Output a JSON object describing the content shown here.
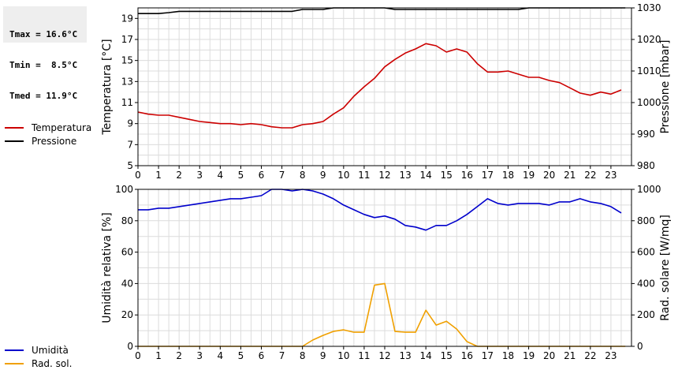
{
  "stats": {
    "lines": [
      "Tmax = 16.6°C",
      "Tmin =  8.5°C",
      "Tmed = 11.9°C"
    ]
  },
  "legend_top": [
    {
      "label": "Temperatura",
      "color": "#cc0000"
    },
    {
      "label": "Pressione",
      "color": "#000000"
    }
  ],
  "legend_bottom": [
    {
      "label": "Umidità",
      "color": "#0000cc"
    },
    {
      "label": "Rad. sol.",
      "color": "#f0a000"
    }
  ],
  "chart_data": [
    {
      "type": "line",
      "xlabel": "",
      "ylabel_left": "Temperatura [°C]",
      "ylabel_right": "Pressione [mbar]",
      "x_ticks": [
        "0",
        "1",
        "2",
        "3",
        "4",
        "5",
        "6",
        "7",
        "8",
        "9",
        "10",
        "11",
        "12",
        "13",
        "14",
        "15",
        "16",
        "17",
        "18",
        "19",
        "20",
        "21",
        "22",
        "23"
      ],
      "y_left_ticks": [
        "5",
        "7",
        "9",
        "11",
        "13",
        "15",
        "17",
        "19"
      ],
      "y_right_ticks": [
        "980",
        "990",
        "1000",
        "1010",
        "1020",
        "1030"
      ],
      "xlim": [
        0,
        24
      ],
      "ylim_left": [
        5,
        20
      ],
      "ylim_right": [
        980,
        1030
      ],
      "grid": true,
      "series": [
        {
          "name": "Temperatura",
          "axis": "left",
          "color": "#cc0000",
          "x": [
            0,
            0.5,
            1,
            1.5,
            2,
            2.5,
            3,
            3.5,
            4,
            4.5,
            5,
            5.5,
            6,
            6.5,
            7,
            7.5,
            8,
            8.5,
            9,
            9.5,
            10,
            10.5,
            11,
            11.5,
            12,
            12.5,
            13,
            13.5,
            14,
            14.5,
            15,
            15.5,
            16,
            16.5,
            17,
            17.5,
            18,
            18.5,
            19,
            19.5,
            20,
            20.5,
            21,
            21.5,
            22,
            22.5,
            23,
            23.5
          ],
          "y": [
            10.1,
            9.9,
            9.8,
            9.8,
            9.6,
            9.4,
            9.2,
            9.1,
            9.0,
            9.0,
            8.9,
            9.0,
            8.9,
            8.7,
            8.6,
            8.6,
            8.9,
            9.0,
            9.2,
            9.9,
            10.5,
            11.6,
            12.5,
            13.3,
            14.4,
            15.1,
            15.7,
            16.1,
            16.6,
            16.4,
            15.8,
            16.1,
            15.8,
            14.7,
            13.9,
            13.9,
            14.0,
            13.7,
            13.4,
            13.4,
            13.1,
            12.9,
            12.4,
            11.9,
            11.7,
            12.0,
            11.8,
            12.2
          ]
        },
        {
          "name": "Pressione",
          "axis": "right",
          "color": "#000000",
          "x": [
            0,
            1,
            1.5,
            2,
            3,
            4,
            5,
            6,
            7,
            7.5,
            8,
            9,
            9.5,
            10,
            11,
            12,
            12.5,
            13,
            14,
            15,
            16,
            17,
            18,
            18.5,
            19,
            20,
            21,
            22,
            23,
            23.7
          ],
          "y": [
            1028.2,
            1028.2,
            1028.5,
            1028.9,
            1028.9,
            1028.9,
            1028.9,
            1028.9,
            1028.9,
            1028.9,
            1029.5,
            1029.5,
            1030,
            1030.3,
            1030.3,
            1030.3,
            1029.5,
            1029.5,
            1029.5,
            1029.5,
            1029.5,
            1029.5,
            1029.5,
            1029.5,
            1030.2,
            1030.5,
            1030.5,
            1030.5,
            1030.5,
            1030.5
          ]
        }
      ]
    },
    {
      "type": "line",
      "xlabel": "",
      "ylabel_left": "Umidità relativa [%]",
      "ylabel_right": "Rad. solare [W/mq]",
      "x_ticks": [
        "0",
        "1",
        "2",
        "3",
        "4",
        "5",
        "6",
        "7",
        "8",
        "9",
        "10",
        "11",
        "12",
        "13",
        "14",
        "15",
        "16",
        "17",
        "18",
        "19",
        "20",
        "21",
        "22",
        "23"
      ],
      "y_left_ticks": [
        "0",
        "20",
        "40",
        "60",
        "80",
        "100"
      ],
      "y_right_ticks": [
        "0",
        "200",
        "400",
        "600",
        "800",
        "1000"
      ],
      "xlim": [
        0,
        24
      ],
      "ylim_left": [
        0,
        100
      ],
      "ylim_right": [
        0,
        1000
      ],
      "grid": true,
      "series": [
        {
          "name": "Umidità",
          "axis": "left",
          "color": "#0000cc",
          "x": [
            0,
            0.5,
            1,
            1.5,
            2,
            2.5,
            3,
            3.5,
            4,
            4.5,
            5,
            5.5,
            6,
            6.5,
            7,
            7.5,
            8,
            8.5,
            9,
            9.5,
            10,
            10.5,
            11,
            11.5,
            12,
            12.5,
            13,
            13.5,
            14,
            14.5,
            15,
            15.5,
            16,
            16.5,
            17,
            17.5,
            18,
            18.5,
            19,
            19.5,
            20,
            20.5,
            21,
            21.5,
            22,
            22.5,
            23,
            23.5
          ],
          "y": [
            87,
            87,
            88,
            88,
            89,
            90,
            91,
            92,
            93,
            94,
            94,
            95,
            96,
            100,
            100,
            99,
            100,
            99,
            97,
            94,
            90,
            87,
            84,
            82,
            83,
            81,
            77,
            76,
            74,
            77,
            77,
            80,
            84,
            89,
            94,
            91,
            90,
            91,
            91,
            91,
            90,
            92,
            92,
            94,
            92,
            91,
            89,
            85
          ]
        },
        {
          "name": "Rad. sol.",
          "axis": "right",
          "color": "#f0a000",
          "x": [
            0,
            1,
            2,
            3,
            4,
            5,
            6,
            7,
            8,
            8.5,
            9,
            9.5,
            10,
            10.5,
            11,
            11.5,
            12,
            12.5,
            13,
            13.5,
            14,
            14.5,
            15,
            15.5,
            16,
            16.5,
            17,
            18,
            19,
            20,
            21,
            22,
            23,
            23.7
          ],
          "y": [
            0,
            0,
            0,
            0,
            0,
            0,
            0,
            0,
            0,
            40,
            70,
            95,
            105,
            90,
            90,
            390,
            400,
            95,
            90,
            90,
            230,
            135,
            160,
            110,
            30,
            0,
            0,
            0,
            0,
            0,
            0,
            0,
            0,
            0
          ]
        }
      ]
    }
  ]
}
